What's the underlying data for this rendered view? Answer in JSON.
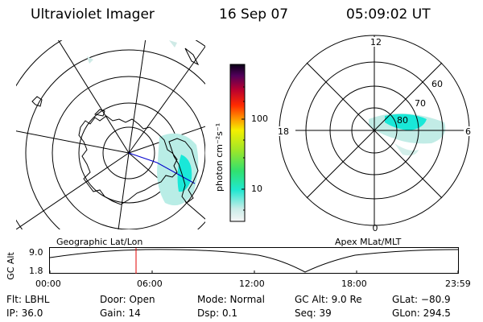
{
  "header": {
    "instrument": "Ultraviolet Imager",
    "date": "16 Sep 07",
    "time": "05:09:02 UT"
  },
  "colorbar": {
    "unit_label": "photon cm⁻²s⁻¹",
    "ticks": [
      "100",
      "10"
    ]
  },
  "polar_plot": {
    "mlt_labels": [
      "12",
      "18",
      "6",
      "0"
    ],
    "lat_labels": [
      "60",
      "70",
      "80"
    ]
  },
  "panel_labels": {
    "left": "Geographic Lat/Lon",
    "right": "Apex MLat/MLT"
  },
  "altitude_track": {
    "axis_label": "GC Alt",
    "y_ticks": [
      "9.0",
      "1.8"
    ],
    "x_ticks": [
      "00:00",
      "06:00",
      "12:00",
      "18:00",
      "23:59"
    ]
  },
  "info": {
    "filter": "Flt: LBHL",
    "ip": "IP: 36.0",
    "door": "Door: Open",
    "gain": "Gain: 14",
    "mode": "Mode: Normal",
    "dsp": "Dsp:    0.1",
    "gc_alt": "GC Alt: 9.0 Re",
    "seq": "Seq: 39",
    "glat": "GLat: −80.9",
    "glon": "GLon: 294.5"
  },
  "colors": {
    "aurora_cyan": "#19e8d8",
    "aurora_pale": "#b9ede6",
    "marker_red": "#e00000",
    "track_blue": "#0000cc"
  }
}
